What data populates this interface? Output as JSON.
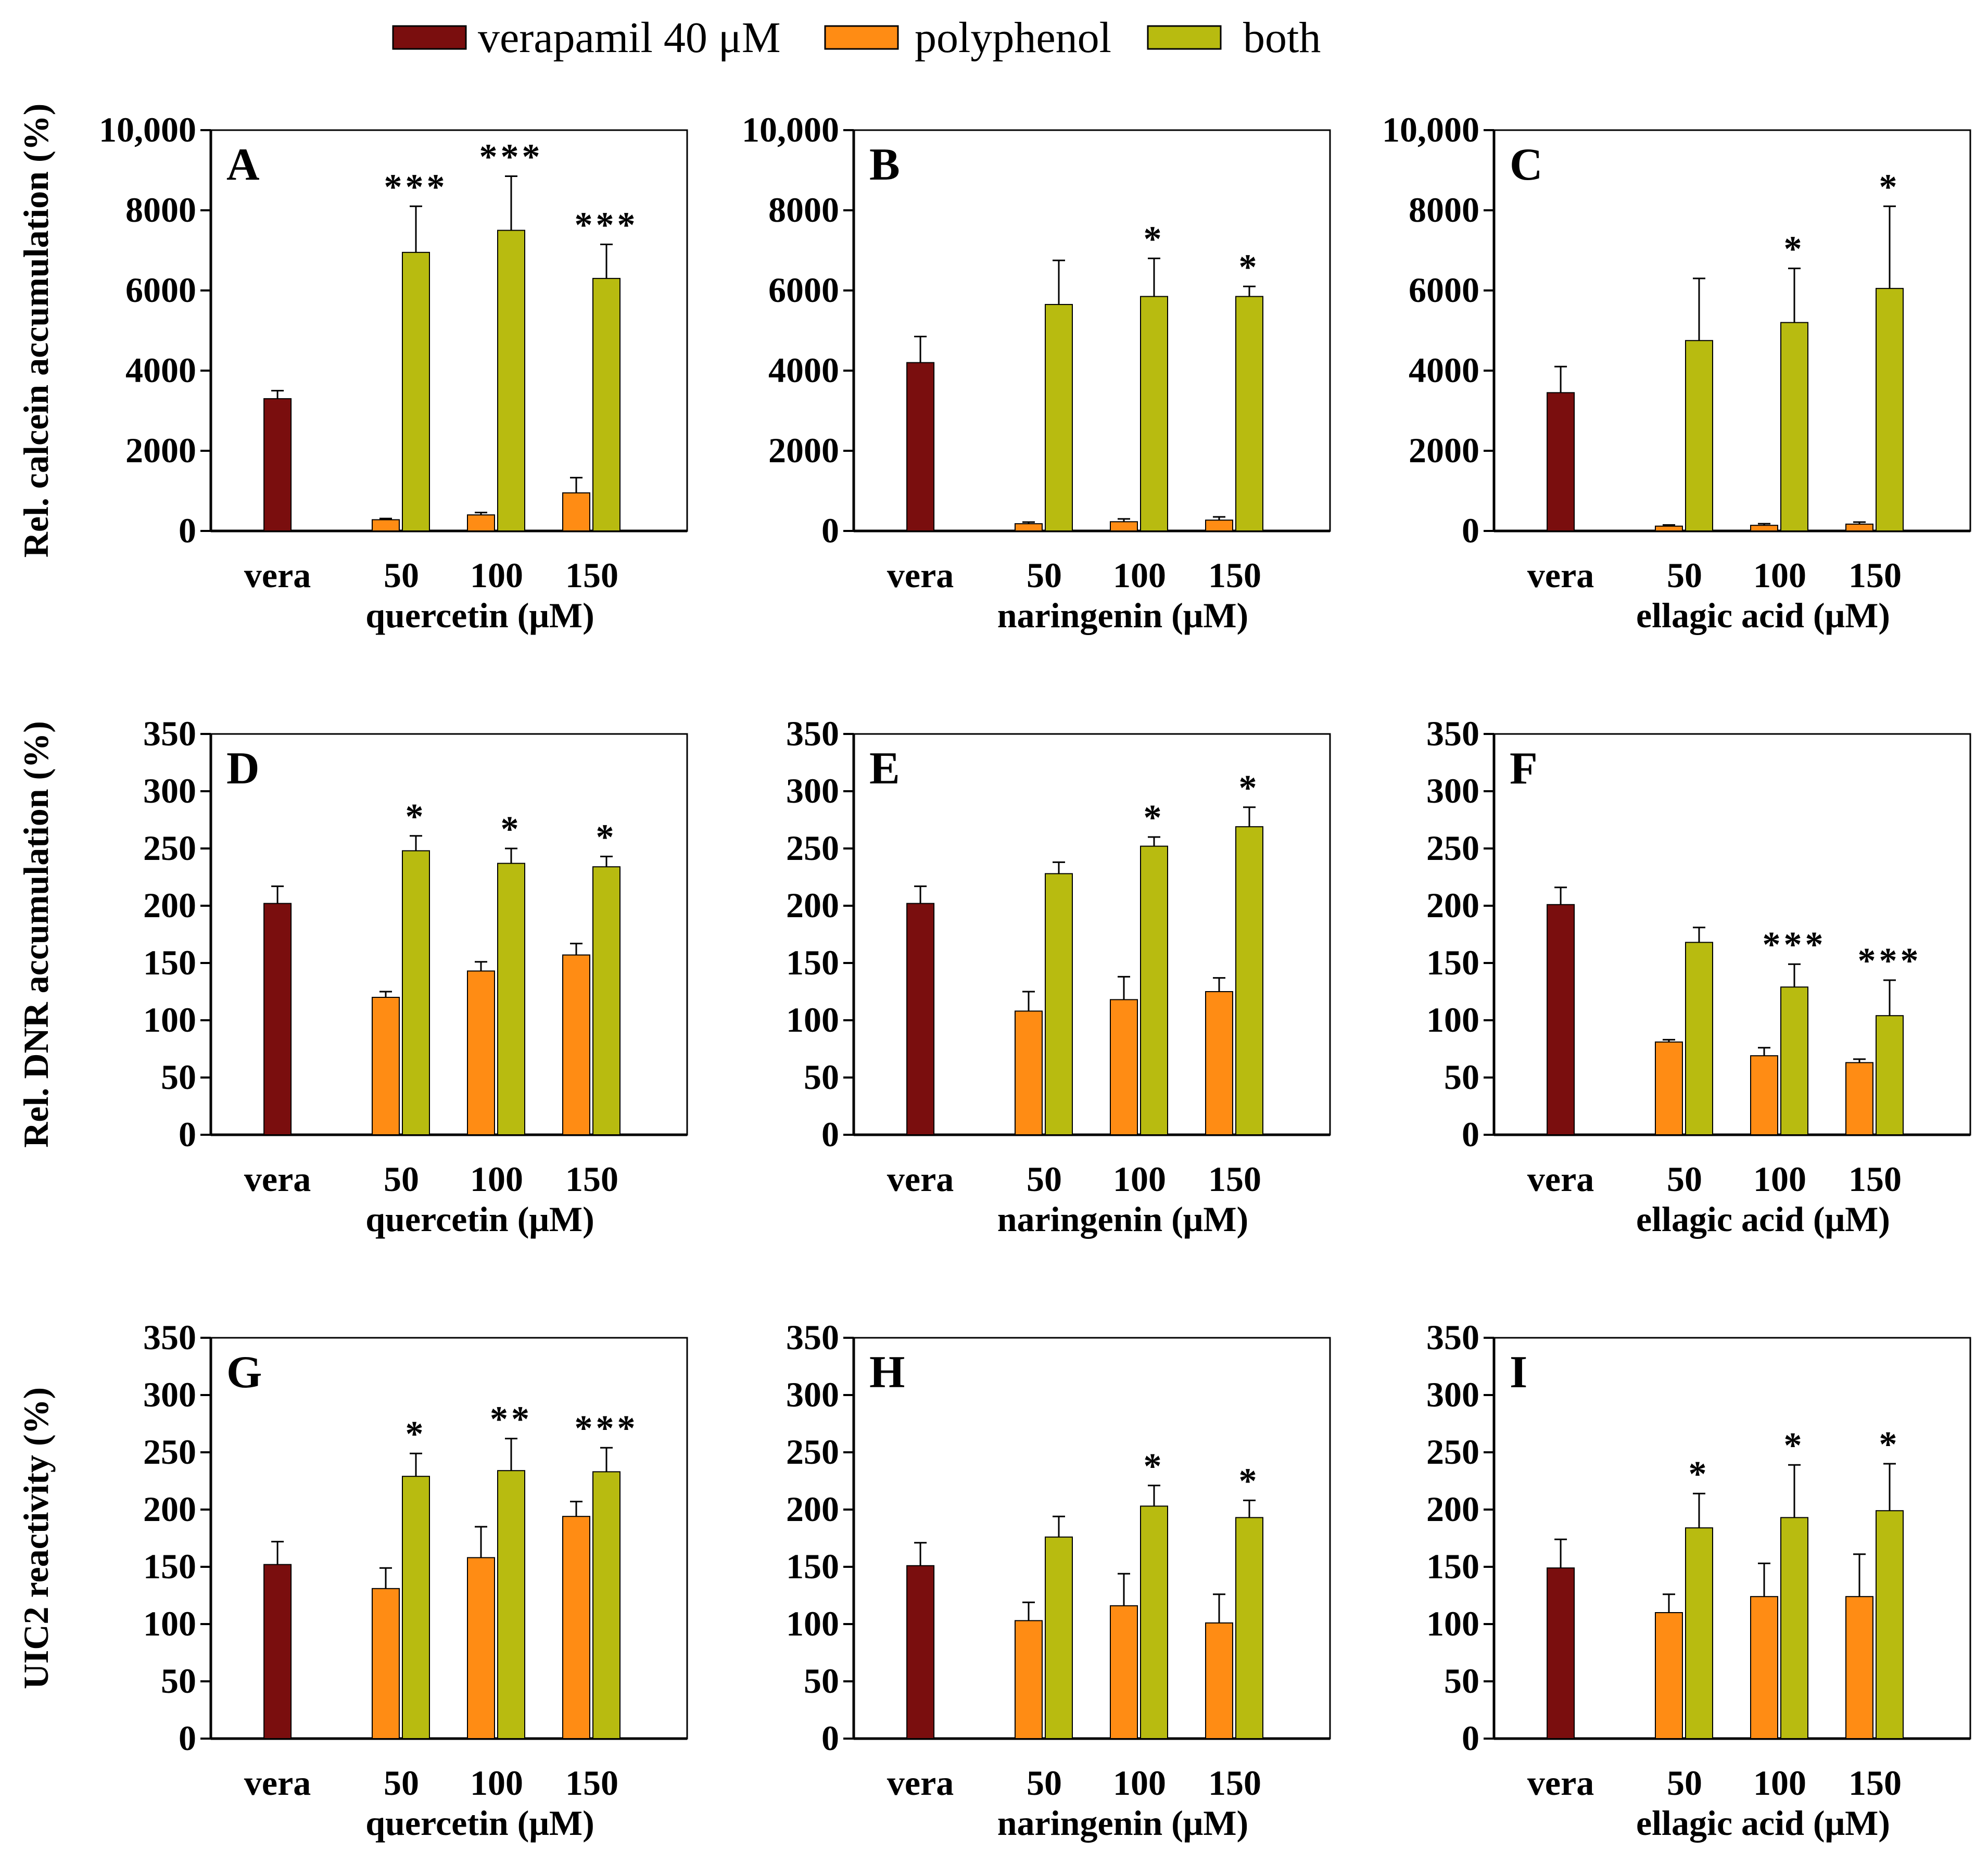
{
  "chart_data": {
    "type": "bar",
    "legend": {
      "placement": "top-center",
      "entries": [
        {
          "key": "vera",
          "label": "verapamil 40 μM",
          "color": "#7a0e0e"
        },
        {
          "key": "poly",
          "label": "polyphenol",
          "color": "#ff8c14"
        },
        {
          "key": "both",
          "label": "both",
          "color": "#b8bb10"
        }
      ]
    },
    "row_ylabels": [
      "Rel. calcein accumulation (%)",
      "Rel. DNR accumulation (%)",
      "UIC2 reactivity (%)"
    ],
    "panels": [
      {
        "letter": "A",
        "row": 0,
        "col": 0,
        "xlabel": "quercetin (μM)",
        "ylim": [
          0,
          10000
        ],
        "yticks": [
          "0",
          "2000",
          "4000",
          "6000",
          "8000",
          "10,000"
        ],
        "categories": [
          "vera",
          "50",
          "100",
          "150"
        ],
        "vera": {
          "value": 3300,
          "err": 200
        },
        "poly": [
          {
            "value": 280,
            "err": 30
          },
          {
            "value": 400,
            "err": 60
          },
          {
            "value": 950,
            "err": 380
          }
        ],
        "both": [
          {
            "value": 6950,
            "err": 1150
          },
          {
            "value": 7500,
            "err": 1350
          },
          {
            "value": 6300,
            "err": 850
          }
        ],
        "stars": [
          "***",
          "***",
          "***"
        ]
      },
      {
        "letter": "B",
        "row": 0,
        "col": 1,
        "xlabel": "naringenin (μM)",
        "ylim": [
          0,
          10000
        ],
        "yticks": [
          "0",
          "2000",
          "4000",
          "6000",
          "8000",
          "10,000"
        ],
        "categories": [
          "vera",
          "50",
          "100",
          "150"
        ],
        "vera": {
          "value": 4200,
          "err": 650
        },
        "poly": [
          {
            "value": 180,
            "err": 40
          },
          {
            "value": 230,
            "err": 70
          },
          {
            "value": 270,
            "err": 80
          }
        ],
        "both": [
          {
            "value": 5650,
            "err": 1100
          },
          {
            "value": 5850,
            "err": 950
          },
          {
            "value": 5850,
            "err": 250
          }
        ],
        "stars": [
          "",
          "*",
          "*"
        ]
      },
      {
        "letter": "C",
        "row": 0,
        "col": 2,
        "xlabel": "ellagic acid (μM)",
        "ylim": [
          0,
          10000
        ],
        "yticks": [
          "0",
          "2000",
          "4000",
          "6000",
          "8000",
          "10,000"
        ],
        "categories": [
          "vera",
          "50",
          "100",
          "150"
        ],
        "vera": {
          "value": 3450,
          "err": 650
        },
        "poly": [
          {
            "value": 120,
            "err": 30
          },
          {
            "value": 140,
            "err": 40
          },
          {
            "value": 170,
            "err": 50
          }
        ],
        "both": [
          {
            "value": 4750,
            "err": 1550
          },
          {
            "value": 5200,
            "err": 1350
          },
          {
            "value": 6050,
            "err": 2050
          }
        ],
        "stars": [
          "",
          "*",
          "*"
        ]
      },
      {
        "letter": "D",
        "row": 1,
        "col": 0,
        "xlabel": "quercetin (μM)",
        "ylim": [
          0,
          350
        ],
        "yticks": [
          "0",
          "50",
          "100",
          "150",
          "200",
          "250",
          "300",
          "350"
        ],
        "categories": [
          "vera",
          "50",
          "100",
          "150"
        ],
        "vera": {
          "value": 202,
          "err": 15
        },
        "poly": [
          {
            "value": 120,
            "err": 5
          },
          {
            "value": 143,
            "err": 8
          },
          {
            "value": 157,
            "err": 10
          }
        ],
        "both": [
          {
            "value": 248,
            "err": 13
          },
          {
            "value": 237,
            "err": 13
          },
          {
            "value": 234,
            "err": 9
          }
        ],
        "stars": [
          "*",
          "*",
          "*"
        ]
      },
      {
        "letter": "E",
        "row": 1,
        "col": 1,
        "xlabel": "naringenin (μM)",
        "ylim": [
          0,
          350
        ],
        "yticks": [
          "0",
          "50",
          "100",
          "150",
          "200",
          "250",
          "300",
          "350"
        ],
        "categories": [
          "vera",
          "50",
          "100",
          "150"
        ],
        "vera": {
          "value": 202,
          "err": 15
        },
        "poly": [
          {
            "value": 108,
            "err": 17
          },
          {
            "value": 118,
            "err": 20
          },
          {
            "value": 125,
            "err": 12
          }
        ],
        "both": [
          {
            "value": 228,
            "err": 10
          },
          {
            "value": 252,
            "err": 8
          },
          {
            "value": 269,
            "err": 17
          }
        ],
        "stars": [
          "",
          "*",
          "*"
        ]
      },
      {
        "letter": "F",
        "row": 1,
        "col": 2,
        "xlabel": "ellagic acid (μM)",
        "ylim": [
          0,
          350
        ],
        "yticks": [
          "0",
          "50",
          "100",
          "150",
          "200",
          "250",
          "300",
          "350"
        ],
        "categories": [
          "vera",
          "50",
          "100",
          "150"
        ],
        "vera": {
          "value": 201,
          "err": 15
        },
        "poly": [
          {
            "value": 81,
            "err": 2
          },
          {
            "value": 69,
            "err": 7
          },
          {
            "value": 63,
            "err": 3
          }
        ],
        "both": [
          {
            "value": 168,
            "err": 13
          },
          {
            "value": 129,
            "err": 20
          },
          {
            "value": 104,
            "err": 31
          }
        ],
        "stars": [
          "",
          "***",
          "***"
        ]
      },
      {
        "letter": "G",
        "row": 2,
        "col": 0,
        "xlabel": "quercetin (μM)",
        "ylim": [
          0,
          350
        ],
        "yticks": [
          "0",
          "50",
          "100",
          "150",
          "200",
          "250",
          "300",
          "350"
        ],
        "categories": [
          "vera",
          "50",
          "100",
          "150"
        ],
        "vera": {
          "value": 152,
          "err": 20
        },
        "poly": [
          {
            "value": 131,
            "err": 18
          },
          {
            "value": 158,
            "err": 27
          },
          {
            "value": 194,
            "err": 13
          }
        ],
        "both": [
          {
            "value": 229,
            "err": 20
          },
          {
            "value": 234,
            "err": 28
          },
          {
            "value": 233,
            "err": 21
          }
        ],
        "stars": [
          "*",
          "**",
          "***"
        ]
      },
      {
        "letter": "H",
        "row": 2,
        "col": 1,
        "xlabel": "naringenin (μM)",
        "ylim": [
          0,
          350
        ],
        "yticks": [
          "0",
          "50",
          "100",
          "150",
          "200",
          "250",
          "300",
          "350"
        ],
        "categories": [
          "vera",
          "50",
          "100",
          "150"
        ],
        "vera": {
          "value": 151,
          "err": 20
        },
        "poly": [
          {
            "value": 103,
            "err": 16
          },
          {
            "value": 116,
            "err": 28
          },
          {
            "value": 101,
            "err": 25
          }
        ],
        "both": [
          {
            "value": 176,
            "err": 18
          },
          {
            "value": 203,
            "err": 18
          },
          {
            "value": 193,
            "err": 15
          }
        ],
        "stars": [
          "",
          "*",
          "*"
        ]
      },
      {
        "letter": "I",
        "row": 2,
        "col": 2,
        "xlabel": "ellagic acid (μM)",
        "ylim": [
          0,
          350
        ],
        "yticks": [
          "0",
          "50",
          "100",
          "150",
          "200",
          "250",
          "300",
          "350"
        ],
        "categories": [
          "vera",
          "50",
          "100",
          "150"
        ],
        "vera": {
          "value": 149,
          "err": 25
        },
        "poly": [
          {
            "value": 110,
            "err": 16
          },
          {
            "value": 124,
            "err": 29
          },
          {
            "value": 124,
            "err": 37
          }
        ],
        "both": [
          {
            "value": 184,
            "err": 30
          },
          {
            "value": 193,
            "err": 46
          },
          {
            "value": 199,
            "err": 41
          }
        ],
        "stars": [
          "*",
          "*",
          "*"
        ]
      }
    ]
  }
}
